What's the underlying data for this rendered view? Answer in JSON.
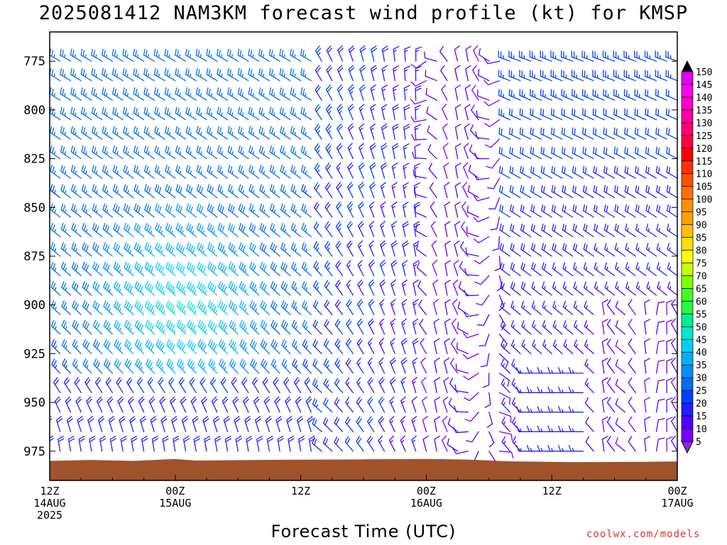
{
  "title": "2025081412 NAM3KM forecast wind profile (kt) for KMSP",
  "credit": "coolwx.com/models",
  "chart_data": {
    "type": "wind-barb time-height cross section",
    "xlabel": "Forecast Time (UTC)",
    "ylabel": "",
    "y_ticks": [
      "775",
      "800",
      "825",
      "850",
      "875",
      "900",
      "925",
      "950",
      "975"
    ],
    "y_range_hpa": [
      760,
      990
    ],
    "x_ticks": [
      {
        "h": 0,
        "lines": [
          "12Z",
          "14AUG",
          "2025"
        ]
      },
      {
        "h": 12,
        "lines": [
          "00Z",
          "15AUG"
        ]
      },
      {
        "h": 24,
        "lines": [
          "12Z"
        ]
      },
      {
        "h": 36,
        "lines": [
          "00Z",
          "16AUG"
        ]
      },
      {
        "h": 48,
        "lines": [
          "12Z"
        ]
      },
      {
        "h": 60,
        "lines": [
          "00Z",
          "17AUG"
        ]
      }
    ],
    "x_range_hours": [
      0,
      60
    ],
    "colorbar_levels_kt": [
      5,
      10,
      15,
      20,
      25,
      30,
      35,
      40,
      45,
      50,
      55,
      60,
      65,
      70,
      75,
      80,
      85,
      90,
      95,
      100,
      105,
      110,
      115,
      120,
      125,
      130,
      135,
      140,
      145,
      150
    ],
    "colorbar_colors": [
      "#8a2be2",
      "#7a00ff",
      "#5000ff",
      "#2020ff",
      "#0040ff",
      "#0070f0",
      "#0090ff",
      "#00b0ff",
      "#00d0ff",
      "#00e8d0",
      "#00f090",
      "#20ff40",
      "#40ff20",
      "#80ff00",
      "#c8ff00",
      "#ffff00",
      "#ffe000",
      "#ffc000",
      "#ffa000",
      "#ff9000",
      "#ff7000",
      "#ff5000",
      "#ff3000",
      "#ff0000",
      "#ff0040",
      "#ff0070",
      "#ff00a0",
      "#ff00c8",
      "#ff00e8",
      "#e000ff"
    ],
    "terrain_color": "#a0522d",
    "surface_pressure_hpa": [
      [
        0,
        980
      ],
      [
        4,
        979.5
      ],
      [
        8,
        980
      ],
      [
        12,
        979
      ],
      [
        14,
        979.8
      ],
      [
        20,
        979.5
      ],
      [
        30,
        979.2
      ],
      [
        36,
        979
      ],
      [
        40,
        979.3
      ],
      [
        44,
        980.2
      ],
      [
        50,
        980.6
      ],
      [
        56,
        980.5
      ],
      [
        60,
        980.3
      ]
    ],
    "times_hours": [
      0,
      1,
      2,
      3,
      4,
      5,
      6,
      7,
      8,
      9,
      10,
      11,
      12,
      13,
      14,
      15,
      16,
      17,
      18,
      19,
      20,
      21,
      22,
      23,
      24,
      25,
      26,
      27,
      28,
      29,
      30,
      31,
      32,
      33,
      34,
      35,
      36,
      37,
      38,
      39,
      40,
      41,
      42,
      43,
      44,
      45,
      46,
      47,
      48,
      49,
      50,
      51,
      52,
      53,
      54,
      55,
      56,
      57,
      58,
      59,
      60
    ],
    "levels_hpa": [
      775,
      785,
      795,
      805,
      815,
      825,
      835,
      845,
      855,
      865,
      875,
      885,
      895,
      905,
      915,
      925,
      935,
      945,
      955,
      965,
      975
    ],
    "wind_description": "Barbs from NW/W (speeds 15-45 kt, strongest near 00Z 15AUG around 900-925 hPa) early in the period, becoming light and variable from the N/S (5-15 kt) around 00Z 16AUG, then westerly/northwesterly 15-25 kt aloft late in the period."
  }
}
